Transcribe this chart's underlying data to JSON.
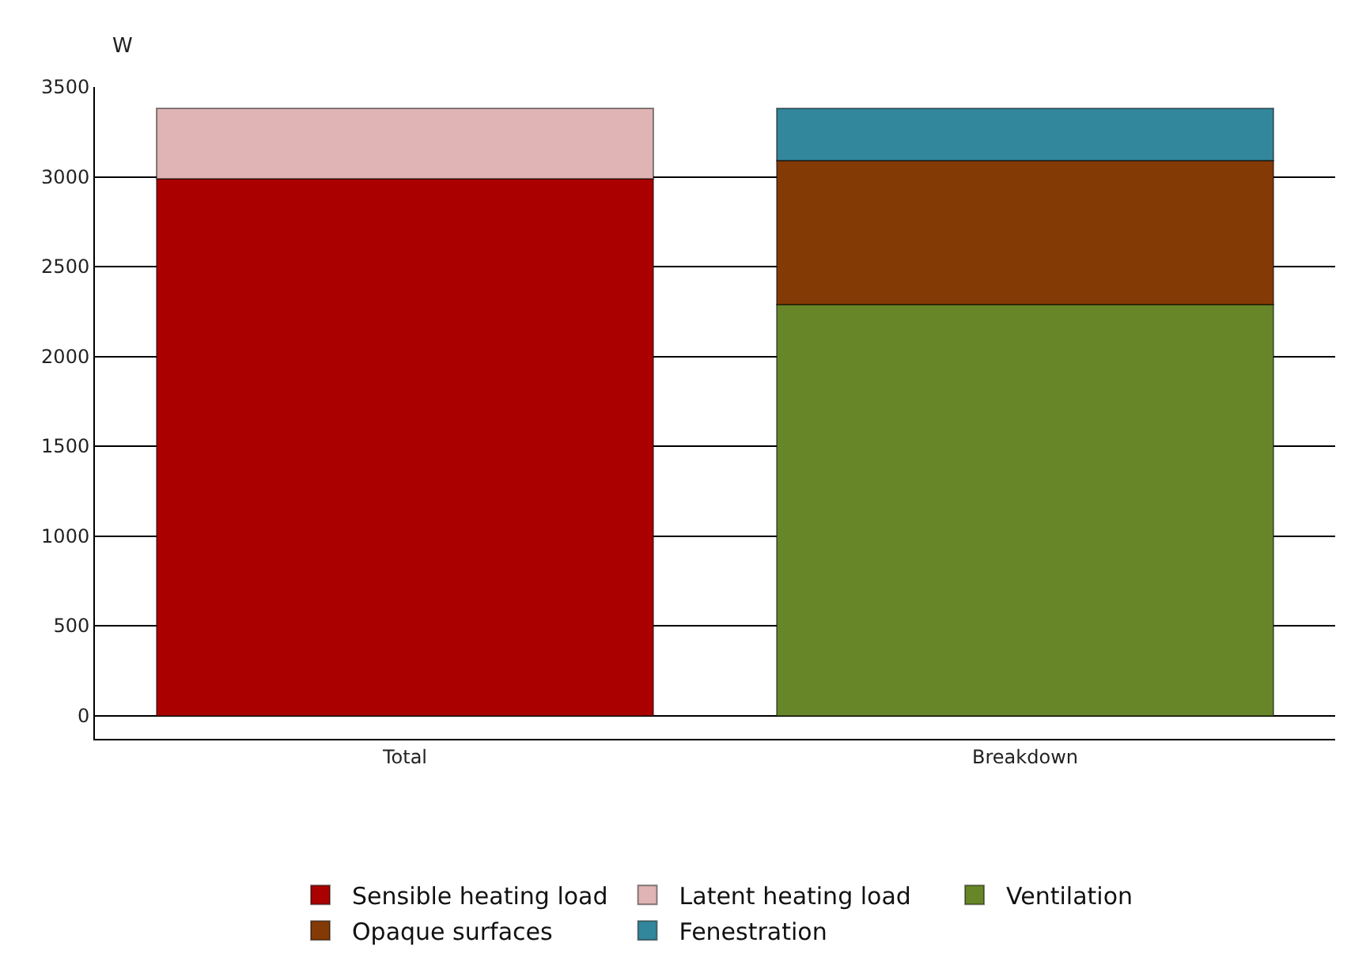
{
  "chart_data": {
    "type": "bar",
    "stacked": true,
    "ylabel": "W",
    "categories": [
      "Total",
      "Breakdown"
    ],
    "series": [
      {
        "name": "Sensible heating load",
        "color": "#aa0000",
        "values": [
          2990,
          null
        ]
      },
      {
        "name": "Latent heating load",
        "color": "#e0b4b4",
        "values": [
          390,
          null
        ]
      },
      {
        "name": "Ventilation",
        "color": "#678628",
        "values": [
          null,
          2290
        ]
      },
      {
        "name": "Opaque surfaces",
        "color": "#843a05",
        "values": [
          null,
          800
        ]
      },
      {
        "name": "Fenestration",
        "color": "#33879c",
        "values": [
          null,
          290
        ]
      }
    ],
    "ylim": [
      -130,
      3500
    ],
    "yticks": [
      0,
      500,
      1000,
      1500,
      2000,
      2500,
      3000,
      3500
    ],
    "grid": "y",
    "legend": "bottom"
  }
}
